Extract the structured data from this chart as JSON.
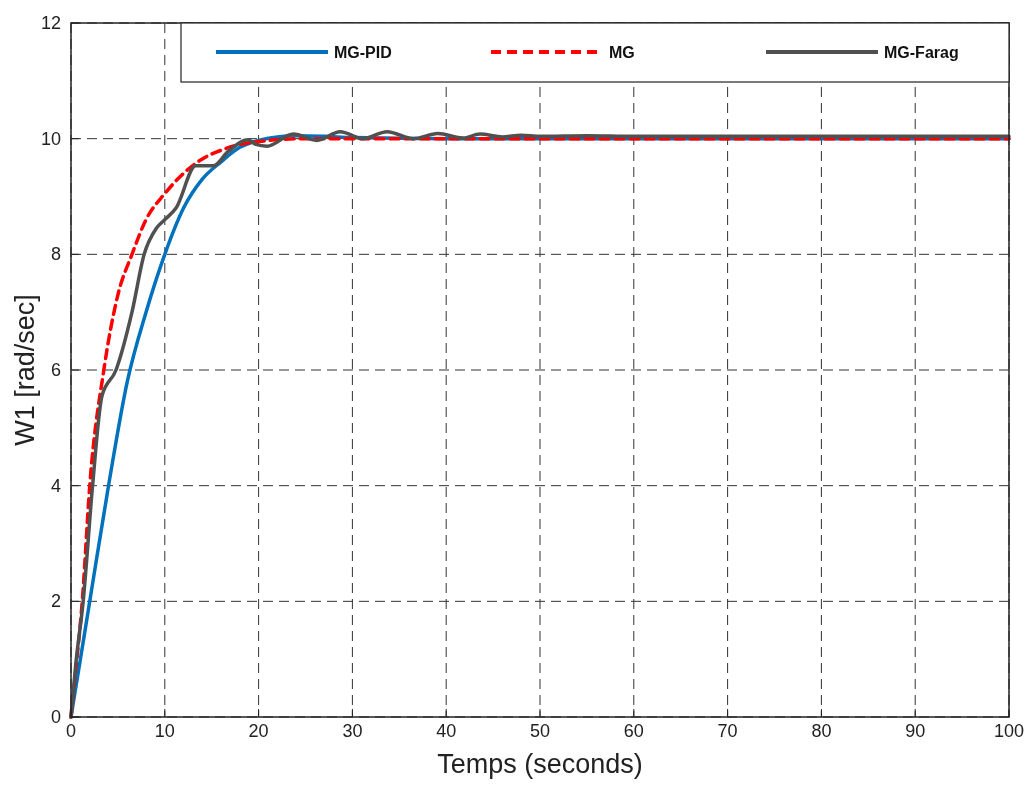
{
  "chart_data": {
    "type": "line",
    "xlabel": "Temps (seconds)",
    "ylabel": "W1 [rad/sec]",
    "xlim": [
      0,
      100
    ],
    "ylim": [
      0,
      12
    ],
    "xticks": [
      0,
      10,
      20,
      30,
      40,
      50,
      60,
      70,
      80,
      90,
      100
    ],
    "yticks": [
      0,
      2,
      4,
      6,
      8,
      10,
      12
    ],
    "grid": true,
    "legend": "top",
    "series": [
      {
        "name": "MG-PID",
        "color": "#0072bd",
        "line_style": "solid",
        "x": [
          0,
          1,
          2,
          4,
          6,
          8,
          10,
          12,
          14,
          16,
          18,
          20,
          22,
          24,
          27,
          30,
          40,
          100
        ],
        "values": [
          0,
          1.0,
          2.0,
          4.0,
          5.8,
          7.0,
          8.0,
          8.8,
          9.3,
          9.6,
          9.85,
          9.97,
          10.03,
          10.05,
          10.04,
          10.02,
          10.0,
          10.0
        ]
      },
      {
        "name": "MG",
        "color": "#ff0000",
        "line_style": "dashed",
        "x": [
          0,
          0.5,
          1.2,
          2,
          3.5,
          5,
          6.5,
          8,
          10,
          12,
          14,
          16,
          18,
          20,
          25,
          30,
          100
        ],
        "values": [
          0,
          0.8,
          2,
          4,
          6,
          7.3,
          8,
          8.6,
          9.05,
          9.4,
          9.65,
          9.8,
          9.9,
          9.95,
          10.0,
          10.0,
          10.0
        ]
      },
      {
        "name": "MG-Farag",
        "color": "#505050",
        "line_style": "solid",
        "x": [
          0,
          0.5,
          1.3,
          2.3,
          3.3,
          4.8,
          6.5,
          7.8,
          9.1,
          10,
          11.2,
          13.3,
          15.2,
          16.7,
          18.9,
          19.7,
          20.9,
          23.7,
          26.2,
          28.7,
          31.1,
          33.7,
          36.5,
          39.1,
          41.8,
          43.6,
          46,
          48,
          50,
          55,
          60,
          70,
          100
        ],
        "values": [
          0,
          0.9,
          2,
          4,
          5.55,
          6,
          7,
          8,
          8.45,
          8.6,
          8.8,
          9.53,
          9.53,
          9.77,
          9.98,
          9.9,
          9.87,
          10.08,
          9.97,
          10.12,
          10.0,
          10.12,
          10.0,
          10.09,
          10.01,
          10.08,
          10.03,
          10.06,
          10.04,
          10.05,
          10.04,
          10.04,
          10.04
        ]
      }
    ]
  }
}
